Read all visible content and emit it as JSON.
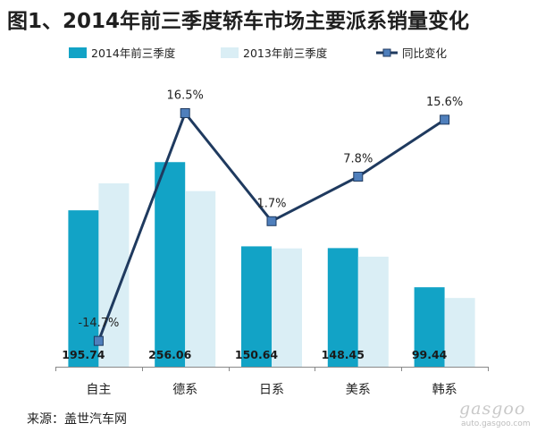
{
  "title": "图1、2014年前三季度轿车市场主要派系销量变化",
  "source": "来源：盖世汽车网",
  "watermark": {
    "brand": "gasgoo",
    "url": "auto.gasgoo.com"
  },
  "colors": {
    "series_2014": "#12a3c6",
    "series_2013": "#daeef5",
    "series_yoy_line": "#1f3a5f",
    "series_yoy_marker": "#4f7fbc",
    "axis": "#888888"
  },
  "chart_data": {
    "type": "bar+line",
    "categories": [
      "自主",
      "德系",
      "日系",
      "美系",
      "韩系"
    ],
    "series": [
      {
        "name": "2014年前三季度",
        "type": "bar",
        "values": [
          195.74,
          256.06,
          150.64,
          148.45,
          99.44
        ],
        "value_labels": [
          "195.74",
          "256.06",
          "150.64",
          "148.45",
          "99.44"
        ]
      },
      {
        "name": "2013年前三季度",
        "type": "bar",
        "values": [
          229.5,
          219.8,
          148.1,
          137.7,
          86.0
        ]
      },
      {
        "name": "同比变化",
        "type": "line",
        "marker": "square",
        "values": [
          -14.7,
          16.5,
          1.7,
          7.8,
          15.6
        ],
        "value_labels": [
          "-14.7%",
          "16.5%",
          "1.7%",
          "7.8%",
          "15.6%"
        ]
      }
    ],
    "bar_axis_range": [
      0,
      300
    ],
    "line_axis_range": [
      -17.5,
      19.5
    ],
    "legend_position": "top",
    "grid": false
  }
}
